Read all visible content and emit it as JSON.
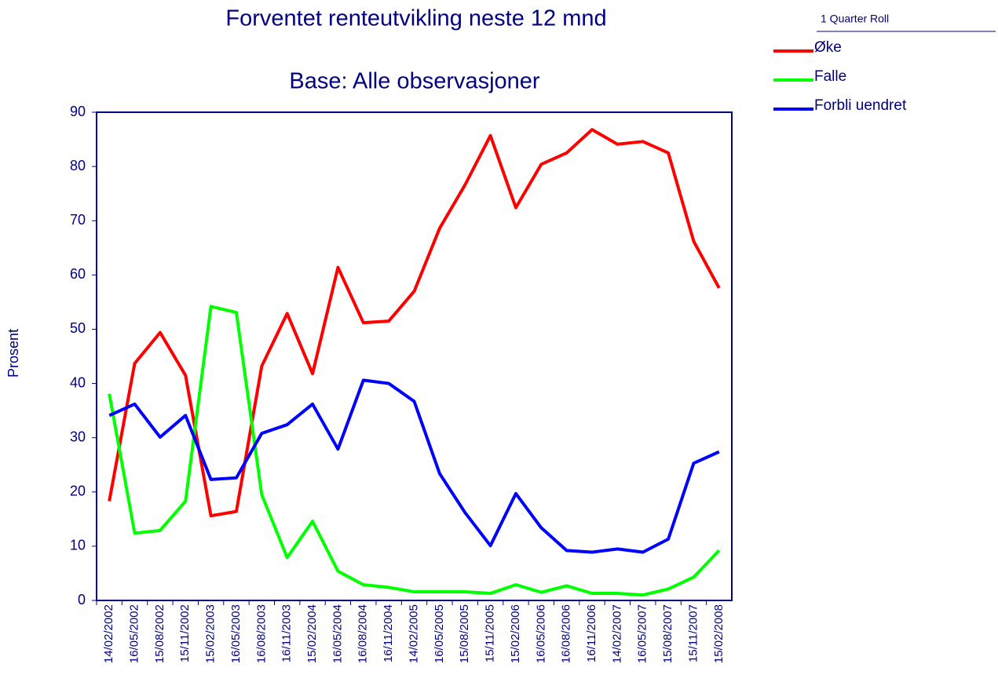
{
  "chart_data": {
    "type": "line",
    "title": "Forventet renteutvikling neste 12 mnd",
    "subtitle": "Base: Alle observasjoner",
    "y_label": "Prosent",
    "legend_title": "1 Quarter Roll",
    "categories": [
      "14/02/2002",
      "16/05/2002",
      "15/08/2002",
      "15/11/2002",
      "15/02/2003",
      "16/05/2003",
      "16/08/2003",
      "16/11/2003",
      "15/02/2004",
      "16/05/2004",
      "16/08/2004",
      "16/11/2004",
      "14/02/2005",
      "16/05/2005",
      "15/08/2005",
      "15/11/2005",
      "15/02/2006",
      "16/05/2006",
      "16/08/2006",
      "16/11/2006",
      "14/02/2007",
      "16/05/2007",
      "15/08/2007",
      "15/11/2007",
      "15/02/2008"
    ],
    "series": [
      {
        "name": "Øke",
        "color": "#ff0000",
        "values": [
          18.3,
          43.7,
          49.4,
          41.5,
          15.6,
          16.4,
          43.2,
          52.9,
          41.8,
          61.4,
          51.2,
          51.5,
          57.0,
          68.6,
          76.6,
          85.7,
          72.4,
          80.4,
          82.5,
          86.8,
          84.1,
          84.6,
          82.5,
          66.2,
          57.6
        ]
      },
      {
        "name": "Falle",
        "color": "#00ff00",
        "values": [
          38.1,
          12.4,
          12.9,
          18.3,
          54.2,
          53.1,
          19.5,
          7.9,
          14.6,
          5.4,
          2.9,
          2.4,
          1.6,
          1.6,
          1.6,
          1.3,
          2.9,
          1.5,
          2.7,
          1.3,
          1.3,
          1.0,
          2.1,
          4.3,
          9.2
        ]
      },
      {
        "name": "Forbli uendret",
        "color": "#0000ff",
        "values": [
          34.1,
          36.2,
          30.1,
          34.1,
          22.3,
          22.6,
          30.8,
          32.4,
          36.2,
          27.9,
          40.6,
          40.0,
          36.7,
          23.4,
          16.2,
          10.1,
          19.7,
          13.4,
          9.2,
          8.9,
          9.5,
          8.9,
          11.3,
          25.3,
          27.4
        ]
      }
    ],
    "ylim": [
      0,
      90
    ],
    "yticks": [
      0,
      10,
      20,
      30,
      40,
      50,
      60,
      70,
      80,
      90
    ]
  }
}
